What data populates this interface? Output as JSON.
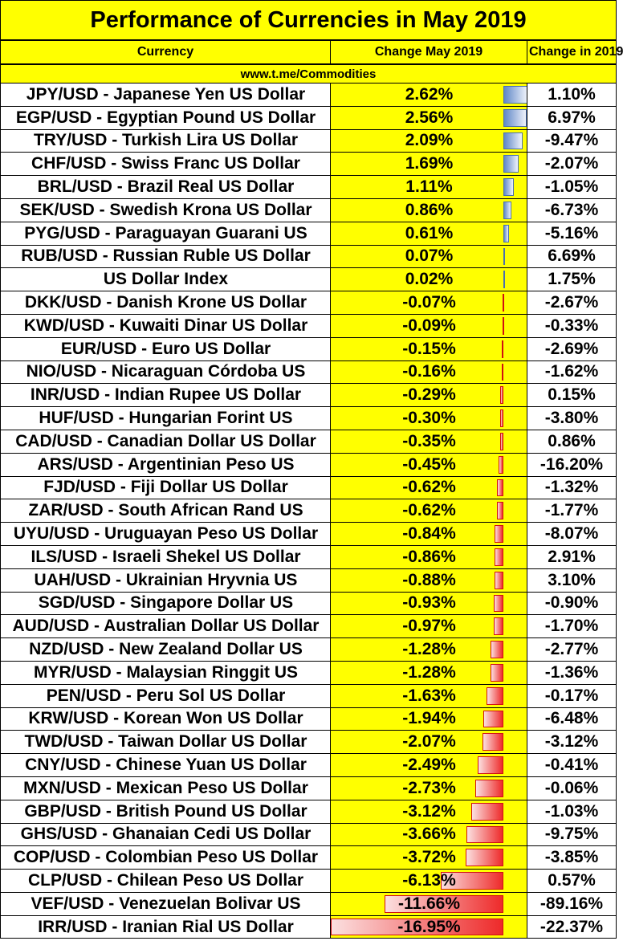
{
  "title": "Performance of Currencies in May 2019",
  "headers": {
    "currency": "Currency",
    "change_may": "Change May 2019",
    "change_year": "Change in 2019"
  },
  "site": "www.t.me/Commodities",
  "colors": {
    "header_bg": "#ffff00",
    "positive_bar": "#5f87c7",
    "negative_bar": "#ee2a2a"
  },
  "chart_data": {
    "type": "table",
    "title": "Performance of Currencies in May 2019",
    "columns": [
      "Currency",
      "Change May 2019",
      "Change in 2019"
    ],
    "rows": [
      {
        "currency": "JPY/USD - Japanese Yen US Dollar",
        "may": 2.62,
        "may_label": "2.62%",
        "ytd_label": "1.10%"
      },
      {
        "currency": "EGP/USD - Egyptian Pound US Dollar",
        "may": 2.56,
        "may_label": "2.56%",
        "ytd_label": "6.97%"
      },
      {
        "currency": "TRY/USD - Turkish Lira US Dollar",
        "may": 2.09,
        "may_label": "2.09%",
        "ytd_label": "-9.47%"
      },
      {
        "currency": "CHF/USD - Swiss Franc US Dollar",
        "may": 1.69,
        "may_label": "1.69%",
        "ytd_label": "-2.07%"
      },
      {
        "currency": "BRL/USD - Brazil Real US Dollar",
        "may": 1.11,
        "may_label": "1.11%",
        "ytd_label": "-1.05%"
      },
      {
        "currency": "SEK/USD - Swedish Krona US Dollar",
        "may": 0.86,
        "may_label": "0.86%",
        "ytd_label": "-6.73%"
      },
      {
        "currency": "PYG/USD - Paraguayan Guarani US",
        "may": 0.61,
        "may_label": "0.61%",
        "ytd_label": "-5.16%"
      },
      {
        "currency": "RUB/USD - Russian Ruble US Dollar",
        "may": 0.07,
        "may_label": "0.07%",
        "ytd_label": "6.69%"
      },
      {
        "currency": "US Dollar Index",
        "may": 0.02,
        "may_label": "0.02%",
        "ytd_label": "1.75%"
      },
      {
        "currency": "DKK/USD - Danish Krone US Dollar",
        "may": -0.07,
        "may_label": "-0.07%",
        "ytd_label": "-2.67%"
      },
      {
        "currency": "KWD/USD - Kuwaiti Dinar US Dollar",
        "may": -0.09,
        "may_label": "-0.09%",
        "ytd_label": "-0.33%"
      },
      {
        "currency": "EUR/USD - Euro US Dollar",
        "may": -0.15,
        "may_label": "-0.15%",
        "ytd_label": "-2.69%"
      },
      {
        "currency": "NIO/USD - Nicaraguan Córdoba US",
        "may": -0.16,
        "may_label": "-0.16%",
        "ytd_label": "-1.62%"
      },
      {
        "currency": "INR/USD - Indian Rupee US Dollar",
        "may": -0.29,
        "may_label": "-0.29%",
        "ytd_label": "0.15%"
      },
      {
        "currency": "HUF/USD - Hungarian Forint US",
        "may": -0.3,
        "may_label": "-0.30%",
        "ytd_label": "-3.80%"
      },
      {
        "currency": "CAD/USD - Canadian Dollar US Dollar",
        "may": -0.35,
        "may_label": "-0.35%",
        "ytd_label": "0.86%"
      },
      {
        "currency": "ARS/USD - Argentinian Peso US",
        "may": -0.45,
        "may_label": "-0.45%",
        "ytd_label": "-16.20%"
      },
      {
        "currency": "FJD/USD - Fiji Dollar US Dollar",
        "may": -0.62,
        "may_label": "-0.62%",
        "ytd_label": "-1.32%"
      },
      {
        "currency": "ZAR/USD - South African Rand US",
        "may": -0.62,
        "may_label": "-0.62%",
        "ytd_label": "-1.77%"
      },
      {
        "currency": "UYU/USD - Uruguayan Peso US Dollar",
        "may": -0.84,
        "may_label": "-0.84%",
        "ytd_label": "-8.07%"
      },
      {
        "currency": "ILS/USD - Israeli Shekel US Dollar",
        "may": -0.86,
        "may_label": "-0.86%",
        "ytd_label": "2.91%"
      },
      {
        "currency": "UAH/USD - Ukrainian Hryvnia US",
        "may": -0.88,
        "may_label": "-0.88%",
        "ytd_label": "3.10%"
      },
      {
        "currency": "SGD/USD - Singapore Dollar US",
        "may": -0.93,
        "may_label": "-0.93%",
        "ytd_label": "-0.90%"
      },
      {
        "currency": "AUD/USD - Australian Dollar US Dollar",
        "may": -0.97,
        "may_label": "-0.97%",
        "ytd_label": "-1.70%"
      },
      {
        "currency": "NZD/USD - New Zealand Dollar US",
        "may": -1.28,
        "may_label": "-1.28%",
        "ytd_label": "-2.77%"
      },
      {
        "currency": "MYR/USD - Malaysian Ringgit US",
        "may": -1.28,
        "may_label": "-1.28%",
        "ytd_label": "-1.36%"
      },
      {
        "currency": "PEN/USD - Peru Sol US Dollar",
        "may": -1.63,
        "may_label": "-1.63%",
        "ytd_label": "-0.17%"
      },
      {
        "currency": "KRW/USD - Korean Won US Dollar",
        "may": -1.94,
        "may_label": "-1.94%",
        "ytd_label": "-6.48%"
      },
      {
        "currency": "TWD/USD - Taiwan Dollar US Dollar",
        "may": -2.07,
        "may_label": "-2.07%",
        "ytd_label": "-3.12%"
      },
      {
        "currency": "CNY/USD - Chinese Yuan US Dollar",
        "may": -2.49,
        "may_label": "-2.49%",
        "ytd_label": "-0.41%"
      },
      {
        "currency": "MXN/USD - Mexican Peso US Dollar",
        "may": -2.73,
        "may_label": "-2.73%",
        "ytd_label": "-0.06%"
      },
      {
        "currency": "GBP/USD - British Pound US Dollar",
        "may": -3.12,
        "may_label": "-3.12%",
        "ytd_label": "-1.03%"
      },
      {
        "currency": "GHS/USD - Ghanaian Cedi US Dollar",
        "may": -3.66,
        "may_label": "-3.66%",
        "ytd_label": "-9.75%"
      },
      {
        "currency": "COP/USD - Colombian Peso US Dollar",
        "may": -3.72,
        "may_label": "-3.72%",
        "ytd_label": "-3.85%"
      },
      {
        "currency": "CLP/USD - Chilean Peso US Dollar",
        "may": -6.13,
        "may_label": "-6.13%",
        "ytd_label": "0.57%"
      },
      {
        "currency": "VEF/USD - Venezuelan Bolivar US",
        "may": -11.66,
        "may_label": "-11.66%",
        "ytd_label": "-89.16%"
      },
      {
        "currency": "IRR/USD -  Iranian Rial US Dollar",
        "may": -16.95,
        "may_label": "-16.95%",
        "ytd_label": "-22.37%"
      }
    ]
  }
}
